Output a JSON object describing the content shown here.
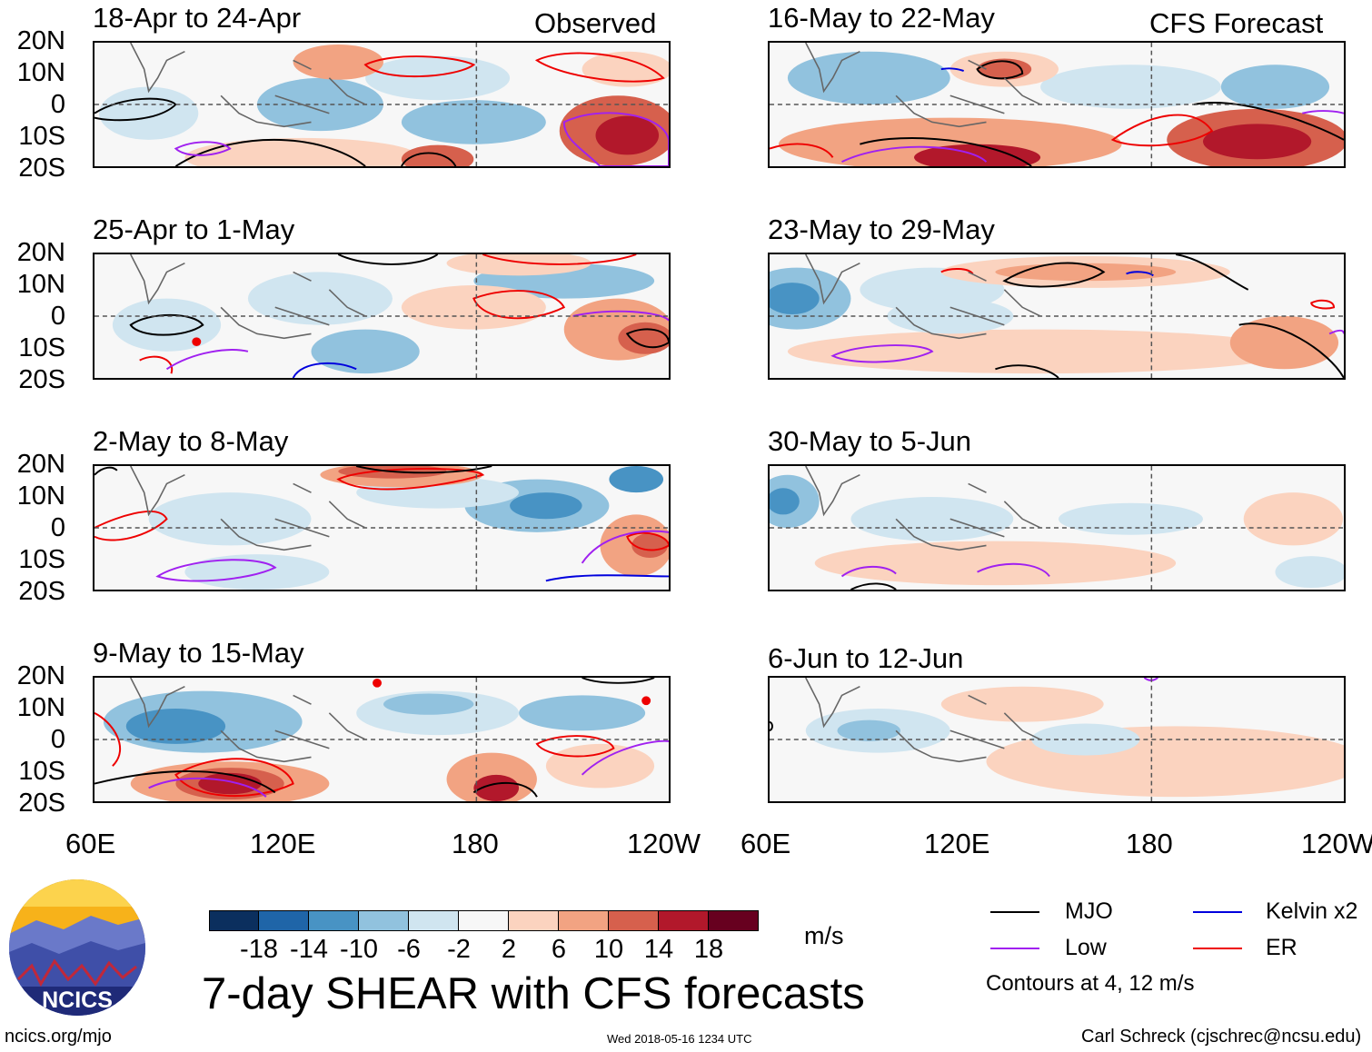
{
  "figure": {
    "title": "7-day SHEAR with CFS forecasts",
    "units": "m/s",
    "timestamp": "Wed 2018-05-16 1234 UTC",
    "url": "ncics.org/mjo",
    "author": "Carl Schreck (cjschrec@ncsu.edu)",
    "logo_text": "NCICS",
    "contours_note": "Contours at 4, 12 m/s"
  },
  "headers": {
    "observed": "Observed",
    "forecast": "CFS Forecast"
  },
  "panels_left": [
    {
      "title": "18-Apr to 24-Apr"
    },
    {
      "title": "25-Apr to 1-May"
    },
    {
      "title": "2-May to 8-May"
    },
    {
      "title": "9-May to 15-May"
    }
  ],
  "panels_right": [
    {
      "title": "16-May to 22-May"
    },
    {
      "title": "23-May to 29-May"
    },
    {
      "title": "30-May to 5-Jun"
    },
    {
      "title": "6-Jun to 12-Jun"
    }
  ],
  "axes": {
    "lat_labels": [
      "20N",
      "10N",
      "0",
      "10S",
      "20S"
    ],
    "lon_labels": [
      "60E",
      "120E",
      "180",
      "120W"
    ]
  },
  "colorbar": {
    "labels": [
      "-18",
      "-14",
      "-10",
      "-6",
      "-2",
      "2",
      "6",
      "10",
      "14",
      "18"
    ],
    "colors": [
      "#0b2f5e",
      "#1f65a8",
      "#4893c4",
      "#91c2de",
      "#d0e5f0",
      "#f7f7f7",
      "#fbd3bf",
      "#f2a382",
      "#d6604d",
      "#b2182b",
      "#67001f"
    ]
  },
  "legend": [
    {
      "label": "MJO",
      "color": "#000000"
    },
    {
      "label": "Kelvin x2",
      "color": "#0000dd"
    },
    {
      "label": "Low",
      "color": "#a020f0"
    },
    {
      "label": "ER",
      "color": "#ee0000"
    }
  ]
}
